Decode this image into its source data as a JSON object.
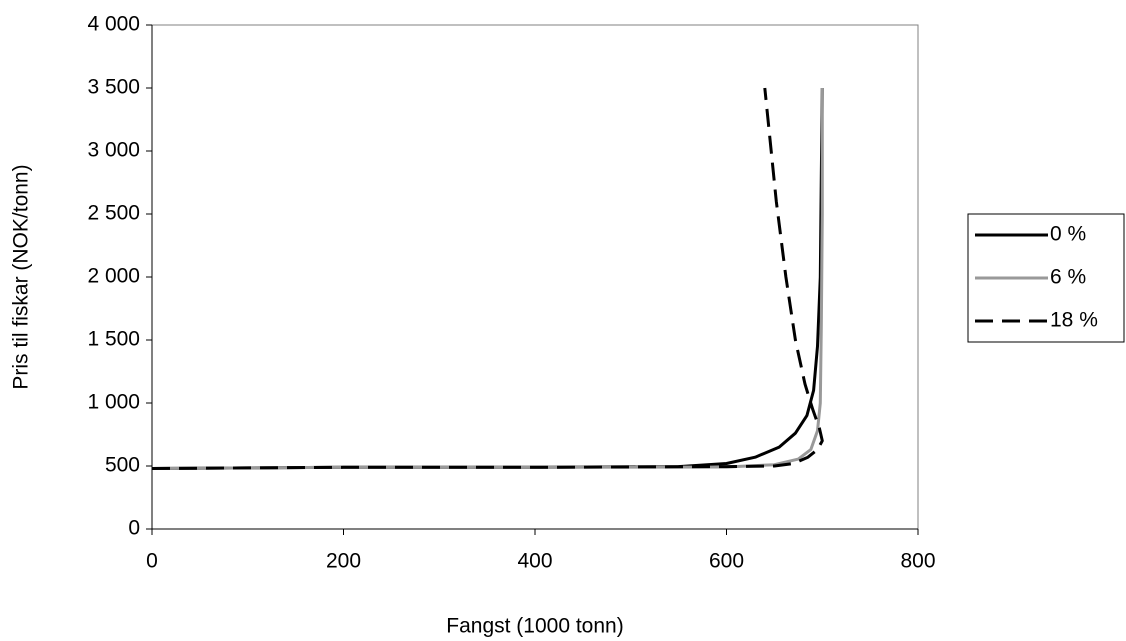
{
  "chart_data": {
    "type": "line",
    "x_label": "Fangst (1000 tonn)",
    "y_label": "Pris til fiskar (NOK/tonn)",
    "xlim": [
      0,
      800
    ],
    "xticks": [
      0,
      200,
      400,
      600,
      800
    ],
    "ylim": [
      0,
      4000
    ],
    "yticks": [
      0,
      500,
      {
        "value": 1000,
        "label": "1 000"
      },
      {
        "value": 1500,
        "label": "1 500"
      },
      {
        "value": 2000,
        "label": "2 000"
      },
      {
        "value": 2500,
        "label": "2 500"
      },
      {
        "value": 3000,
        "label": "3 000"
      },
      {
        "value": 3500,
        "label": "3 500"
      },
      {
        "value": 4000,
        "label": "4 000"
      }
    ],
    "grid": false,
    "legend": "right",
    "series": [
      {
        "name": "0 %",
        "color": "#000000",
        "dashed": false,
        "x": [
          0,
          200,
          400,
          550,
          600,
          630,
          655,
          672,
          684,
          691,
          695,
          698,
          699,
          700
        ],
        "values": [
          480,
          490,
          490,
          495,
          520,
          570,
          650,
          760,
          900,
          1100,
          1450,
          2000,
          2800,
          3500
        ]
      },
      {
        "name": "6 %",
        "color": "#999999",
        "dashed": false,
        "x": [
          0,
          200,
          400,
          600,
          650,
          675,
          688,
          695,
          698,
          699,
          700,
          700
        ],
        "values": [
          480,
          490,
          490,
          492,
          510,
          555,
          630,
          780,
          1000,
          1600,
          2500,
          3500
        ]
      },
      {
        "name": "18 %",
        "color": "#000000",
        "dashed": true,
        "x": [
          0,
          200,
          400,
          600,
          650,
          670,
          685,
          695,
          700,
          697,
          690,
          682,
          672,
          662,
          652,
          640
        ],
        "values": [
          480,
          490,
          490,
          495,
          500,
          520,
          570,
          630,
          700,
          800,
          950,
          1150,
          1500,
          2000,
          2600,
          3500
        ]
      }
    ]
  }
}
